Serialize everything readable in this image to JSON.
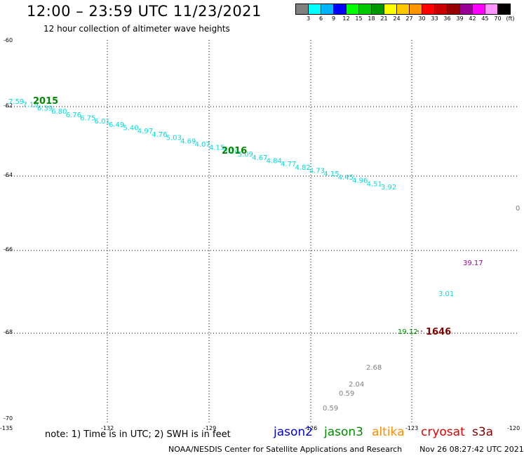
{
  "header": {
    "title": "12:00 – 23:59 UTC 11/23/2021",
    "subtitle": "12 hour collection of altimeter wave heights"
  },
  "colorbar": {
    "colors": [
      "#808080",
      "#00ffff",
      "#00b4ff",
      "#0000ff",
      "#00ff00",
      "#00c800",
      "#009600",
      "#ffff00",
      "#ffc800",
      "#ff9600",
      "#ff0000",
      "#c80000",
      "#960000",
      "#960096",
      "#ff00ff",
      "#ff96ff",
      "#000000"
    ],
    "labels": [
      "3",
      "6",
      "9",
      "12",
      "15",
      "18",
      "21",
      "24",
      "27",
      "30",
      "33",
      "36",
      "39",
      "42",
      "45",
      "70",
      "(ft)"
    ]
  },
  "axes": {
    "lat_labels": [
      "-60",
      "-62",
      "-64",
      "-66",
      "-68",
      "-70"
    ],
    "lon_labels": [
      "-135",
      "-132",
      "-129",
      "-126",
      "-123",
      "-120"
    ]
  },
  "track_labels": {
    "t2015": "2015",
    "t2016": "2016",
    "t1646": "1646"
  },
  "swh_track1": [
    "7.59",
    "7.19",
    "6.39",
    "6.80",
    "6.76",
    "6.75",
    "6.01",
    "6.49",
    "5.40",
    "4.97",
    "4.76",
    "5.03",
    "4.69",
    "4.07",
    "4.15",
    "5.14",
    "5.09",
    "4.67",
    "4.84",
    "4.77",
    "4.82",
    "4.73",
    "4.15",
    "4.45",
    "4.96",
    "4.51",
    "3.92"
  ],
  "swh_other": {
    "edge": "0",
    "v1": "39.17",
    "v2": "3.01",
    "v3": "19.12",
    "v4": "2.68",
    "v5": "2.04",
    "v6": "0.59",
    "v7": "0.59"
  },
  "note": "note: 1) Time is in UTC; 2) SWH is in feet",
  "satellites": [
    {
      "name": "jason2",
      "color": "#0000dd"
    },
    {
      "name": "jason3",
      "color": "#008c00"
    },
    {
      "name": "altika",
      "color": "#ff8c00"
    },
    {
      "name": "cryosat",
      "color": "#e00000"
    },
    {
      "name": "s3a",
      "color": "#800000"
    }
  ],
  "footer": {
    "center": "NOAA/NESDIS Center for Satellite Applications and Research",
    "timestamp": "Nov 26 08:27:42 UTC 2021"
  }
}
